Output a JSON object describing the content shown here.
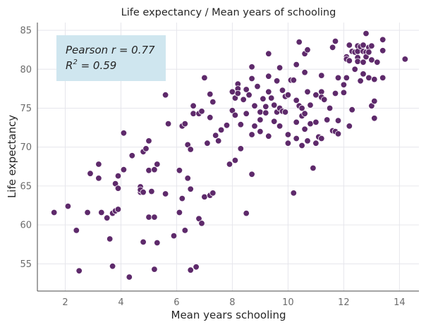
{
  "chart_data": {
    "type": "scatter",
    "title": "Life expectancy / Mean years of schooling",
    "xlabel": "Mean years schooling",
    "ylabel": "Life expectancy",
    "xlim": [
      1.0,
      14.7
    ],
    "ylim": [
      51.5,
      86.0
    ],
    "xticks": [
      2,
      4,
      6,
      8,
      10,
      12,
      14
    ],
    "yticks": [
      55,
      60,
      65,
      70,
      75,
      80,
      85
    ],
    "grid": true,
    "point_color": "#5e2a6b",
    "annotation": {
      "line1": "Pearson r = 0.77",
      "line2_base": "R",
      "line2_sup": "2",
      "line2_rest": " = 0.59",
      "box_color": "#cfe6ef",
      "placement": "top-left"
    },
    "points": [
      [
        1.6,
        61.6
      ],
      [
        2.1,
        62.4
      ],
      [
        2.4,
        59.3
      ],
      [
        2.5,
        54.1
      ],
      [
        2.8,
        61.6
      ],
      [
        2.9,
        66.6
      ],
      [
        3.2,
        67.8
      ],
      [
        3.2,
        66.0
      ],
      [
        3.3,
        61.6
      ],
      [
        3.5,
        60.9
      ],
      [
        3.6,
        58.2
      ],
      [
        3.7,
        61.5
      ],
      [
        3.7,
        54.7
      ],
      [
        3.8,
        65.3
      ],
      [
        3.8,
        61.8
      ],
      [
        3.9,
        64.7
      ],
      [
        3.9,
        66.3
      ],
      [
        3.9,
        62.0
      ],
      [
        4.1,
        71.8
      ],
      [
        4.1,
        67.1
      ],
      [
        4.3,
        53.3
      ],
      [
        4.4,
        68.9
      ],
      [
        4.7,
        64.9
      ],
      [
        4.7,
        64.2
      ],
      [
        4.7,
        64.5
      ],
      [
        4.8,
        64.2
      ],
      [
        4.8,
        69.4
      ],
      [
        4.8,
        57.8
      ],
      [
        4.9,
        69.8
      ],
      [
        5.0,
        70.8
      ],
      [
        5.0,
        67.0
      ],
      [
        5.0,
        61.0
      ],
      [
        5.1,
        64.3
      ],
      [
        5.2,
        54.3
      ],
      [
        5.2,
        67.1
      ],
      [
        5.2,
        61.0
      ],
      [
        5.3,
        67.8
      ],
      [
        5.3,
        57.7
      ],
      [
        5.6,
        76.7
      ],
      [
        5.6,
        64.0
      ],
      [
        5.7,
        73.0
      ],
      [
        5.9,
        58.6
      ],
      [
        6.1,
        67.0
      ],
      [
        6.1,
        61.6
      ],
      [
        6.2,
        72.7
      ],
      [
        6.2,
        63.4
      ],
      [
        6.3,
        59.3
      ],
      [
        6.3,
        73.0
      ],
      [
        6.4,
        70.3
      ],
      [
        6.4,
        66.0
      ],
      [
        6.5,
        69.7
      ],
      [
        6.5,
        64.6
      ],
      [
        6.5,
        54.2
      ],
      [
        6.6,
        75.3
      ],
      [
        6.6,
        74.3
      ],
      [
        6.7,
        54.6
      ],
      [
        6.8,
        74.3
      ],
      [
        6.8,
        60.8
      ],
      [
        6.9,
        74.6
      ],
      [
        6.9,
        60.2
      ],
      [
        7.0,
        78.9
      ],
      [
        7.0,
        63.6
      ],
      [
        7.1,
        70.5
      ],
      [
        7.2,
        76.8
      ],
      [
        7.2,
        73.8
      ],
      [
        7.2,
        63.8
      ],
      [
        7.3,
        75.8
      ],
      [
        7.3,
        64.1
      ],
      [
        7.4,
        71.5
      ],
      [
        7.5,
        70.8
      ],
      [
        7.6,
        72.2
      ],
      [
        7.8,
        72.8
      ],
      [
        7.9,
        67.8
      ],
      [
        8.0,
        77.1
      ],
      [
        8.0,
        74.7
      ],
      [
        8.1,
        76.3
      ],
      [
        8.1,
        74.1
      ],
      [
        8.1,
        68.3
      ],
      [
        8.2,
        78.1
      ],
      [
        8.2,
        77.5
      ],
      [
        8.2,
        76.9
      ],
      [
        8.3,
        72.9
      ],
      [
        8.3,
        69.8
      ],
      [
        8.4,
        76.1
      ],
      [
        8.5,
        77.4
      ],
      [
        8.5,
        74.3
      ],
      [
        8.5,
        61.5
      ],
      [
        8.6,
        76.7
      ],
      [
        8.7,
        80.3
      ],
      [
        8.7,
        78.8
      ],
      [
        8.7,
        71.6
      ],
      [
        8.7,
        66.5
      ],
      [
        8.8,
        75.3
      ],
      [
        8.8,
        72.7
      ],
      [
        8.9,
        77.8
      ],
      [
        9.0,
        74.5
      ],
      [
        9.0,
        73.5
      ],
      [
        9.0,
        72.0
      ],
      [
        9.1,
        76.2
      ],
      [
        9.2,
        75.2
      ],
      [
        9.2,
        74.4
      ],
      [
        9.3,
        82.0
      ],
      [
        9.3,
        79.1
      ],
      [
        9.3,
        77.1
      ],
      [
        9.3,
        71.4
      ],
      [
        9.4,
        76.3
      ],
      [
        9.5,
        75.4
      ],
      [
        9.5,
        73.3
      ],
      [
        9.6,
        78.5
      ],
      [
        9.6,
        74.5
      ],
      [
        9.7,
        80.2
      ],
      [
        9.7,
        75.0
      ],
      [
        9.7,
        72.7
      ],
      [
        9.8,
        77.3
      ],
      [
        9.8,
        74.6
      ],
      [
        9.9,
        76.5
      ],
      [
        9.9,
        74.5
      ],
      [
        10.0,
        76.7
      ],
      [
        10.0,
        71.6
      ],
      [
        10.0,
        70.5
      ],
      [
        10.1,
        78.6
      ],
      [
        10.2,
        78.6
      ],
      [
        10.2,
        64.1
      ],
      [
        10.3,
        80.6
      ],
      [
        10.3,
        76.0
      ],
      [
        10.3,
        73.2
      ],
      [
        10.3,
        71.1
      ],
      [
        10.4,
        83.5
      ],
      [
        10.4,
        75.3
      ],
      [
        10.5,
        75.0
      ],
      [
        10.5,
        74.0
      ],
      [
        10.5,
        70.2
      ],
      [
        10.6,
        82.0
      ],
      [
        10.6,
        79.6
      ],
      [
        10.6,
        74.3
      ],
      [
        10.6,
        72.3
      ],
      [
        10.7,
        82.5
      ],
      [
        10.7,
        77.1
      ],
      [
        10.7,
        70.8
      ],
      [
        10.8,
        75.4
      ],
      [
        10.8,
        73.0
      ],
      [
        10.9,
        67.3
      ],
      [
        11.0,
        76.7
      ],
      [
        11.0,
        73.2
      ],
      [
        11.0,
        70.5
      ],
      [
        11.1,
        71.3
      ],
      [
        11.2,
        79.2
      ],
      [
        11.2,
        77.1
      ],
      [
        11.2,
        76.4
      ],
      [
        11.2,
        71.1
      ],
      [
        11.3,
        76.1
      ],
      [
        11.4,
        73.5
      ],
      [
        11.5,
        75.0
      ],
      [
        11.6,
        82.8
      ],
      [
        11.6,
        72.1
      ],
      [
        11.7,
        83.6
      ],
      [
        11.7,
        76.9
      ],
      [
        11.7,
        72.0
      ],
      [
        11.8,
        78.9
      ],
      [
        11.8,
        71.7
      ],
      [
        11.8,
        73.4
      ],
      [
        12.0,
        78.0
      ],
      [
        12.0,
        77.0
      ],
      [
        12.1,
        81.6
      ],
      [
        12.1,
        81.3
      ],
      [
        12.1,
        78.9
      ],
      [
        12.2,
        83.1
      ],
      [
        12.2,
        81.1
      ],
      [
        12.2,
        72.7
      ],
      [
        12.3,
        82.3
      ],
      [
        12.3,
        74.8
      ],
      [
        12.4,
        82.2
      ],
      [
        12.4,
        80.0
      ],
      [
        12.5,
        83.0
      ],
      [
        12.5,
        82.3
      ],
      [
        12.5,
        81.5
      ],
      [
        12.5,
        81.0
      ],
      [
        12.6,
        82.9
      ],
      [
        12.6,
        78.5
      ],
      [
        12.7,
        83.1
      ],
      [
        12.7,
        82.3
      ],
      [
        12.7,
        80.9
      ],
      [
        12.7,
        79.4
      ],
      [
        12.8,
        84.6
      ],
      [
        12.8,
        82.2
      ],
      [
        12.8,
        81.6
      ],
      [
        12.9,
        82.8
      ],
      [
        12.9,
        82.2
      ],
      [
        12.9,
        78.9
      ],
      [
        13.0,
        83.0
      ],
      [
        13.0,
        81.2
      ],
      [
        13.0,
        75.3
      ],
      [
        13.1,
        75.9
      ],
      [
        13.1,
        73.7
      ],
      [
        13.1,
        78.7
      ],
      [
        13.2,
        80.9
      ],
      [
        13.4,
        83.8
      ],
      [
        13.4,
        82.4
      ],
      [
        13.4,
        78.9
      ],
      [
        14.2,
        81.3
      ]
    ]
  }
}
